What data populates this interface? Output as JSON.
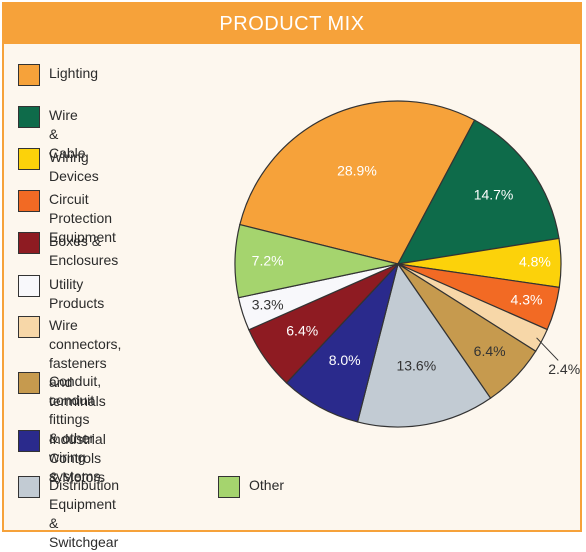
{
  "title": "PRODUCT MIX",
  "chart_data": {
    "type": "pie",
    "title": "PRODUCT MIX",
    "legend_placement": "left",
    "slices": [
      {
        "name": "Lighting",
        "value": 28.9,
        "label": "28.9%",
        "color": "#f6a23a",
        "label_color": "#ffffff"
      },
      {
        "name": "Wire & Cable",
        "value": 14.7,
        "label": "14.7%",
        "color": "#0e6b4a",
        "label_color": "#ffffff"
      },
      {
        "name": "Wiring Devices",
        "value": 4.8,
        "label": "4.8%",
        "color": "#fcd20a",
        "label_color": "#ffffff"
      },
      {
        "name": "Circuit Protection Equipment",
        "value": 4.3,
        "label": "4.3%",
        "color": "#f26a24",
        "label_color": "#ffffff"
      },
      {
        "name": "Wire connectors, fasteners\nand terminals",
        "value": 2.4,
        "label": "2.4%",
        "color": "#f7d7a8",
        "label_color": "#333333"
      },
      {
        "name": "Conduit, conduit fittings\n& other wiring systems",
        "value": 6.4,
        "label": "6.4%",
        "color": "#c69a4e",
        "label_color": "#333333"
      },
      {
        "name": "Distribution Equipment\n& Switchgear",
        "value": 13.6,
        "label": "13.6%",
        "color": "#c2cbd3",
        "label_color": "#333333"
      },
      {
        "name": "Industrial Controls & Motors",
        "value": 8.0,
        "label": "8.0%",
        "color": "#2a2a8c",
        "label_color": "#ffffff"
      },
      {
        "name": "Boxes & Enclosures",
        "value": 6.4,
        "label": "6.4%",
        "color": "#8e1b22",
        "label_color": "#ffffff"
      },
      {
        "name": "Utility Products",
        "value": 3.3,
        "label": "3.3%",
        "color": "#f8f8fb",
        "label_color": "#333333"
      },
      {
        "name": "Other",
        "value": 7.2,
        "label": "7.2%",
        "color": "#a5d46e",
        "label_color": "#ffffff"
      }
    ],
    "legend": [
      {
        "name": "Lighting",
        "color": "#f6a23a"
      },
      {
        "name": "Wire & Cable",
        "color": "#0e6b4a"
      },
      {
        "name": "Wiring Devices",
        "color": "#fcd20a"
      },
      {
        "name": "Circuit Protection Equipment",
        "color": "#f26a24"
      },
      {
        "name": "Boxes & Enclosures",
        "color": "#8e1b22"
      },
      {
        "name": "Utility Products",
        "color": "#f8f8fb"
      },
      {
        "name": "Wire connectors, fasteners\nand terminals",
        "color": "#f7d7a8"
      },
      {
        "name": "Conduit, conduit fittings\n& other wiring systems",
        "color": "#c69a4e"
      },
      {
        "name": "Industrial Controls & Motors",
        "color": "#2a2a8c"
      },
      {
        "name": "Distribution Equipment\n& Switchgear",
        "color": "#c2cbd3"
      },
      {
        "name": "Other",
        "color": "#a5d46e"
      }
    ]
  }
}
